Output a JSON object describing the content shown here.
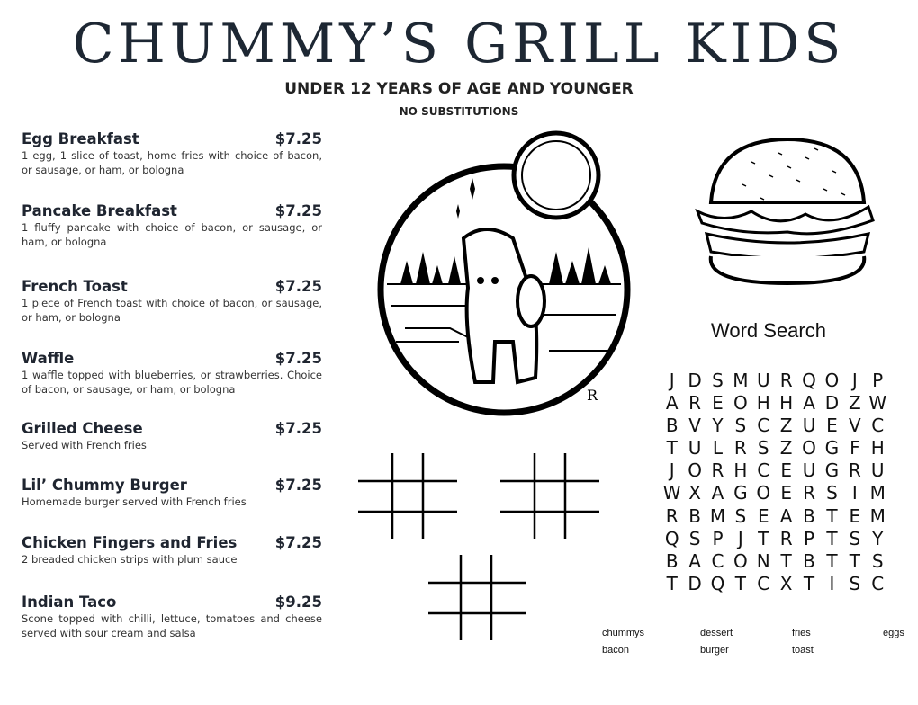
{
  "header": {
    "title": "CHUMMY’S GRILL KIDS",
    "subtitle": "UNDER 12 YEARS OF AGE AND YOUNGER",
    "note": "NO SUBSTITUTIONS"
  },
  "menu": [
    {
      "name": "Egg Breakfast",
      "price": "$7.25",
      "desc": "1 egg, 1 slice of toast, home fries with choice of bacon, or sausage, or ham, or bologna"
    },
    {
      "name": "Pancake Breakfast",
      "price": "$7.25",
      "desc": "1 fluffy pancake with choice of bacon, or sausage, or ham, or bologna"
    },
    {
      "name": "French Toast",
      "price": "$7.25",
      "desc": "1 piece of French toast with choice of bacon, or sausage, or ham, or bologna"
    },
    {
      "name": "Waffle",
      "price": "$7.25",
      "desc": "1 waffle topped with blueberries, or strawberries. Choice of bacon, or sausage, or ham, or bologna"
    },
    {
      "name": "Grilled Cheese",
      "price": "$7.25",
      "desc": "Served with French fries"
    },
    {
      "name": "Lil’ Chummy Burger",
      "price": "$7.25",
      "desc": "Homemade burger served with French fries"
    },
    {
      "name": "Chicken Fingers and Fries",
      "price": "$7.25",
      "desc": "2 breaded chicken strips with plum sauce"
    },
    {
      "name": "Indian Taco",
      "price": "$9.25",
      "desc": "Scone topped with chilli, lettuce, tomatoes and cheese served with sour cream and salsa"
    }
  ],
  "illustrations": {
    "bear_signature": "R",
    "icons": [
      "bear-moon-illustration",
      "burger-illustration",
      "tic-tac-toe-grid"
    ]
  },
  "word_search": {
    "title": "Word Search",
    "rows": [
      "JDSMURQOJP",
      "AREOHHADZW",
      "BVYSCZUEVC",
      "TULRSZOGFH",
      "JORHCEUGRU",
      "WXAGOERSIM",
      "RBMSEABTEM",
      "QSPJTRPTSY",
      "BACONTBTTS",
      "TDQTCXTISC"
    ],
    "words": [
      "chummys",
      "dessert",
      "fries",
      "eggs",
      "bacon",
      "burger",
      "toast"
    ]
  }
}
